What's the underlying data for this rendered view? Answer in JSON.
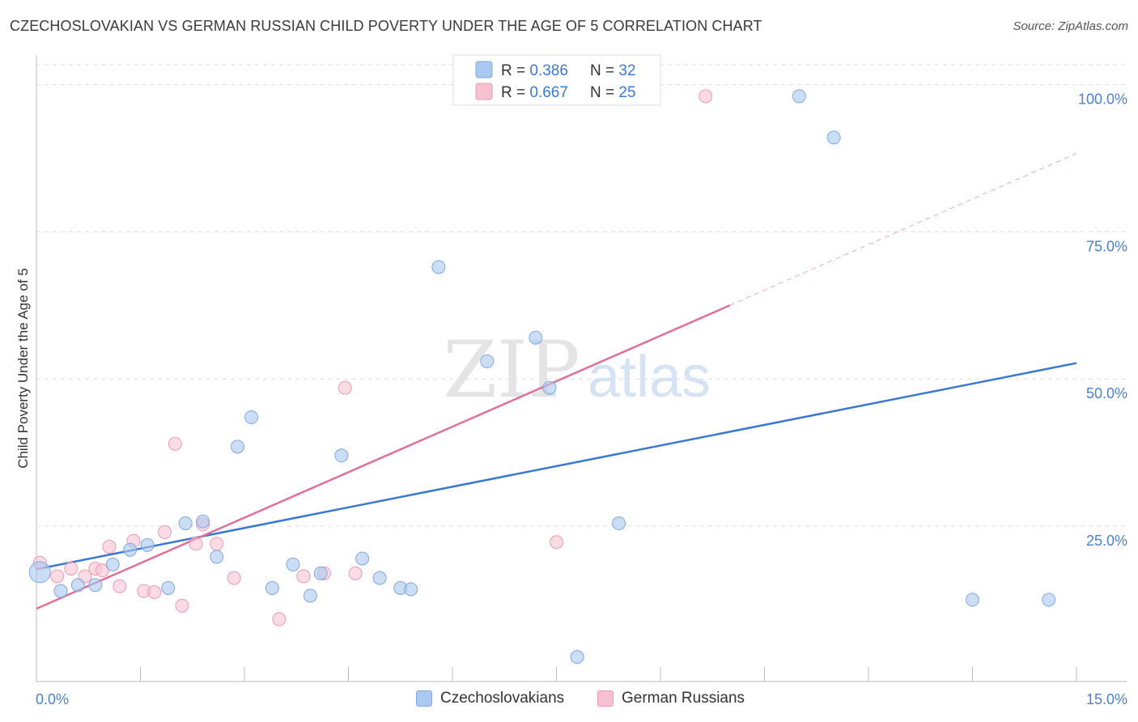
{
  "header": {
    "title": "CZECHOSLOVAKIAN VS GERMAN RUSSIAN CHILD POVERTY UNDER THE AGE OF 5 CORRELATION CHART",
    "source": "Source: ZipAtlas.com"
  },
  "watermark": {
    "zip": "ZIP",
    "atlas": "atlas"
  },
  "colors": {
    "blue_fill": "#aac8f0",
    "blue_stroke": "#7ea8e0",
    "blue_line": "#3a78d4",
    "pink_fill": "#f7c0d0",
    "pink_stroke": "#ec9ab4",
    "pink_line": "#e07098",
    "tick_text": "#4a7fd0",
    "grid": "#dddddd"
  },
  "legend_box": {
    "rows": [
      {
        "r_label": "R = ",
        "r_value": "0.386",
        "n_label": "N = ",
        "n_value": "32"
      },
      {
        "r_label": "R = ",
        "r_value": "0.667",
        "n_label": "N = ",
        "n_value": "25"
      }
    ]
  },
  "chart_data": {
    "type": "scatter",
    "title": "CZECHOSLOVAKIAN VS GERMAN RUSSIAN CHILD POVERTY UNDER THE AGE OF 5 CORRELATION CHART",
    "xlabel": "",
    "ylabel": "Child Poverty Under the Age of 5",
    "xlim": [
      0,
      15
    ],
    "ylim": [
      0,
      105
    ],
    "x_tick_labels": [
      "0.0%",
      "15.0%"
    ],
    "y_ticks": [
      25,
      50,
      75,
      100
    ],
    "y_tick_labels": [
      "25.0%",
      "50.0%",
      "75.0%",
      "100.0%"
    ],
    "grid": true,
    "legend_position": "bottom",
    "series": [
      {
        "name": "Czechoslovakians",
        "r": 0.386,
        "n": 32,
        "points": [
          [
            0.05,
            17.2
          ],
          [
            0.35,
            14.0
          ],
          [
            0.6,
            15.0
          ],
          [
            0.85,
            15.0
          ],
          [
            1.1,
            18.5
          ],
          [
            1.35,
            21.0
          ],
          [
            1.6,
            21.8
          ],
          [
            1.9,
            14.5
          ],
          [
            2.15,
            25.5
          ],
          [
            2.4,
            25.8
          ],
          [
            2.6,
            19.8
          ],
          [
            2.9,
            38.5
          ],
          [
            3.1,
            43.5
          ],
          [
            3.4,
            14.5
          ],
          [
            3.7,
            18.5
          ],
          [
            3.95,
            13.2
          ],
          [
            4.1,
            17.0
          ],
          [
            4.4,
            37.0
          ],
          [
            4.7,
            19.5
          ],
          [
            4.95,
            16.2
          ],
          [
            5.25,
            14.5
          ],
          [
            5.4,
            14.3
          ],
          [
            5.8,
            69.0
          ],
          [
            6.5,
            53.0
          ],
          [
            7.2,
            57.0
          ],
          [
            7.4,
            48.5
          ],
          [
            7.8,
            2.8
          ],
          [
            8.4,
            25.5
          ],
          [
            11.0,
            98.0
          ],
          [
            11.5,
            91.0
          ],
          [
            13.5,
            12.5
          ],
          [
            14.6,
            12.5
          ]
        ],
        "trend": {
          "x": [
            0,
            15
          ],
          "y": [
            17.7,
            52.7
          ]
        }
      },
      {
        "name": "German Russians",
        "r": 0.667,
        "n": 25,
        "points": [
          [
            0.05,
            18.8
          ],
          [
            0.3,
            16.5
          ],
          [
            0.5,
            17.8
          ],
          [
            0.7,
            16.5
          ],
          [
            0.85,
            17.8
          ],
          [
            0.95,
            17.5
          ],
          [
            1.05,
            21.5
          ],
          [
            1.2,
            14.8
          ],
          [
            1.4,
            22.5
          ],
          [
            1.55,
            14.0
          ],
          [
            1.7,
            13.8
          ],
          [
            1.85,
            24.0
          ],
          [
            2.0,
            39.0
          ],
          [
            2.1,
            11.5
          ],
          [
            2.3,
            22.0
          ],
          [
            2.4,
            25.3
          ],
          [
            2.6,
            22.0
          ],
          [
            2.85,
            16.2
          ],
          [
            3.5,
            9.2
          ],
          [
            3.85,
            16.5
          ],
          [
            4.15,
            17.0
          ],
          [
            4.45,
            48.5
          ],
          [
            4.6,
            17.0
          ],
          [
            7.5,
            22.3
          ],
          [
            9.65,
            98.0
          ]
        ],
        "trend": {
          "x": [
            0,
            10.0
          ],
          "y": [
            11.0,
            62.5
          ]
        },
        "trend_extension": {
          "x": [
            10.0,
            15
          ],
          "y": [
            62.5,
            88.3
          ]
        }
      }
    ]
  }
}
